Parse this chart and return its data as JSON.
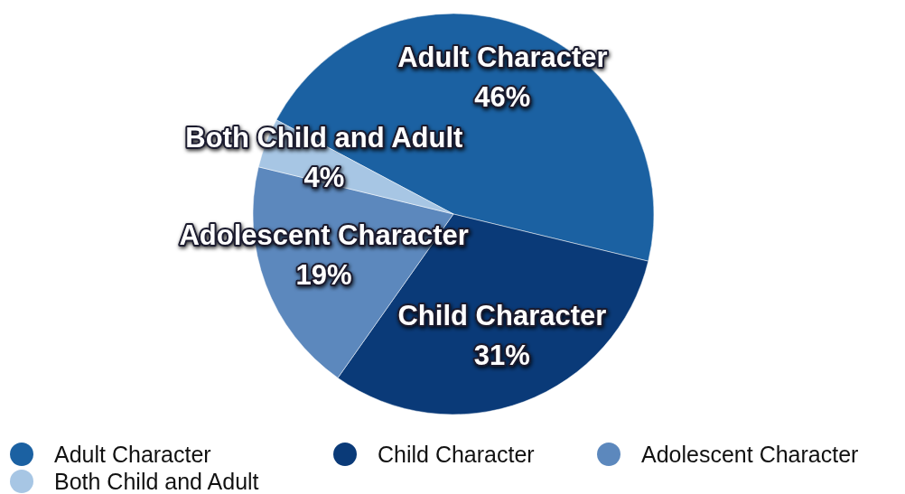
{
  "chart_data": {
    "type": "pie",
    "categories": [
      "Adult Character",
      "Child Character",
      "Adolescent Character",
      "Both Child and Adult"
    ],
    "values": [
      46,
      31,
      19,
      4
    ],
    "colors": [
      "#1b61a2",
      "#0a3a78",
      "#5c88bd",
      "#a7c6e4"
    ],
    "value_labels": [
      "46%",
      "31%",
      "19%",
      "4%"
    ],
    "legend": "bottom"
  }
}
